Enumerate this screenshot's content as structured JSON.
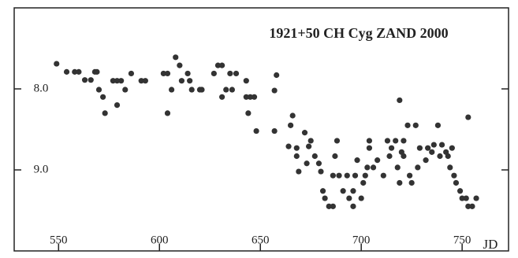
{
  "chart_data": {
    "type": "scatter",
    "title": "1921+50  CH Cyg  ZAND  2000",
    "xlabel": "JD",
    "xlim": [
      528,
      773
    ],
    "ylim": [
      10.0,
      7.0
    ],
    "xticks": [
      550,
      600,
      650,
      700,
      750
    ],
    "yticks": [
      {
        "value": 8,
        "label": "8.0"
      },
      {
        "value": 9,
        "label": "9.0"
      }
    ],
    "color": "#333333",
    "x": [
      549,
      554,
      558,
      560,
      563,
      566,
      568,
      569,
      570,
      572,
      573,
      577,
      579,
      579,
      581,
      583,
      586,
      591,
      593,
      602,
      604,
      604,
      606,
      608,
      610,
      611,
      614,
      615,
      616,
      620,
      621,
      627,
      629,
      631,
      631,
      633,
      635,
      636,
      638,
      643,
      643,
      645,
      644,
      647,
      648,
      657,
      658,
      657,
      664,
      665,
      666,
      668,
      668,
      669,
      672,
      673,
      674,
      675,
      677,
      679,
      680,
      681,
      682,
      684,
      686,
      686,
      687,
      688,
      689,
      691,
      693,
      694,
      696,
      696,
      697,
      698,
      700,
      701,
      702,
      703,
      704,
      704,
      706,
      708,
      711,
      713,
      714,
      715,
      717,
      718,
      719,
      719,
      720,
      721,
      721,
      723,
      724,
      725,
      727,
      728,
      729,
      732,
      733,
      735,
      736,
      738,
      739,
      740,
      742,
      743,
      744,
      745,
      746,
      747,
      749,
      750,
      752,
      753,
      753,
      755,
      757
    ],
    "y": [
      7.69,
      7.79,
      7.79,
      7.79,
      7.89,
      7.89,
      7.79,
      7.79,
      8.01,
      8.1,
      8.3,
      7.9,
      7.9,
      8.2,
      7.9,
      8.01,
      7.81,
      7.9,
      7.9,
      7.81,
      7.81,
      8.3,
      8.01,
      7.61,
      7.71,
      7.9,
      7.81,
      7.9,
      8.01,
      8.01,
      8.01,
      7.81,
      7.71,
      7.71,
      8.1,
      8.01,
      7.81,
      8.01,
      7.81,
      7.9,
      8.1,
      8.1,
      8.3,
      8.1,
      8.52,
      8.02,
      7.83,
      8.52,
      8.71,
      8.45,
      8.33,
      8.73,
      8.83,
      9.02,
      8.54,
      8.92,
      8.71,
      8.64,
      8.83,
      8.92,
      9.02,
      9.26,
      9.35,
      9.45,
      9.07,
      9.45,
      8.83,
      8.64,
      9.07,
      9.26,
      9.07,
      9.35,
      9.45,
      9.26,
      9.07,
      8.88,
      9.35,
      9.16,
      9.07,
      8.97,
      8.73,
      8.64,
      8.97,
      8.88,
      9.07,
      8.64,
      8.83,
      8.73,
      8.64,
      8.97,
      9.16,
      8.14,
      8.78,
      8.83,
      8.64,
      8.45,
      9.07,
      9.16,
      8.45,
      8.97,
      8.73,
      8.88,
      8.73,
      8.78,
      8.69,
      8.45,
      8.83,
      8.69,
      8.78,
      8.83,
      8.97,
      8.73,
      9.07,
      9.16,
      9.26,
      9.35,
      9.35,
      8.35,
      9.45,
      9.45,
      9.35
    ]
  }
}
